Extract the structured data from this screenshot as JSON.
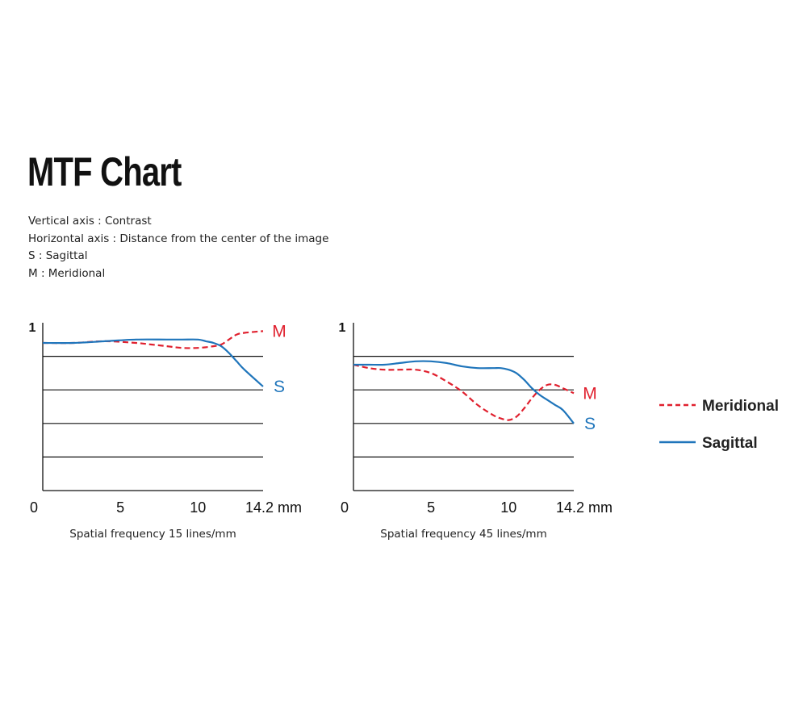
{
  "page": {
    "title": "MTF Chart",
    "description": [
      "Vertical axis : Contrast",
      "Horizontal axis : Distance from the center of the image",
      "S : Sagittal",
      "M : Meridional"
    ]
  },
  "colors": {
    "meridional": "#e0202e",
    "sagittal": "#1f75bb",
    "axis": "#111111"
  },
  "legend": [
    {
      "name": "Meridional",
      "style": "dashed",
      "color": "#e0202e"
    },
    {
      "name": "Sagittal",
      "style": "solid",
      "color": "#1f75bb"
    }
  ],
  "chart_data": [
    {
      "type": "line",
      "xlabel": "Spatial frequency 15 lines/mm",
      "ylabel": "",
      "xlim": [
        0,
        14.2
      ],
      "ylim": [
        0,
        1
      ],
      "x_ticks": [
        "0",
        "5",
        "10",
        "14.2 mm"
      ],
      "x_tick_values": [
        0,
        5,
        10,
        14.2
      ],
      "y_ticks": [
        "1",
        "0"
      ],
      "grid": "horizontal",
      "gridlines_y": [
        0.2,
        0.4,
        0.6,
        0.8
      ],
      "series": [
        {
          "name": "M",
          "style": "dashed",
          "x": [
            0,
            2,
            4,
            6,
            7,
            8,
            9,
            10,
            11,
            11.5,
            12,
            12.5,
            13,
            14.2
          ],
          "y": [
            0.88,
            0.88,
            0.89,
            0.88,
            0.87,
            0.86,
            0.85,
            0.85,
            0.86,
            0.87,
            0.9,
            0.93,
            0.94,
            0.95
          ]
        },
        {
          "name": "S",
          "style": "solid",
          "x": [
            0,
            2,
            4,
            6,
            8,
            9,
            10,
            10.5,
            11,
            11.5,
            12,
            12.5,
            13,
            14.2
          ],
          "y": [
            0.88,
            0.88,
            0.89,
            0.9,
            0.9,
            0.9,
            0.9,
            0.89,
            0.88,
            0.86,
            0.82,
            0.77,
            0.72,
            0.62
          ]
        }
      ]
    },
    {
      "type": "line",
      "xlabel": "Spatial frequency 45 lines/mm",
      "ylabel": "",
      "xlim": [
        0,
        14.2
      ],
      "ylim": [
        0,
        1
      ],
      "x_ticks": [
        "0",
        "5",
        "10",
        "14.2 mm"
      ],
      "x_tick_values": [
        0,
        5,
        10,
        14.2
      ],
      "y_ticks": [
        "1",
        "0"
      ],
      "grid": "horizontal",
      "gridlines_y": [
        0.2,
        0.4,
        0.6,
        0.8
      ],
      "series": [
        {
          "name": "M",
          "style": "dashed",
          "x": [
            0,
            1,
            2,
            3,
            4,
            5,
            6,
            7,
            8,
            9,
            9.5,
            10,
            10.5,
            11,
            11.5,
            12,
            12.5,
            13,
            13.5,
            14.2
          ],
          "y": [
            0.75,
            0.73,
            0.72,
            0.72,
            0.72,
            0.7,
            0.65,
            0.59,
            0.51,
            0.45,
            0.43,
            0.42,
            0.44,
            0.49,
            0.55,
            0.6,
            0.63,
            0.63,
            0.61,
            0.58
          ]
        },
        {
          "name": "S",
          "style": "solid",
          "x": [
            0,
            1,
            2,
            3,
            4,
            5,
            6,
            7,
            8,
            9,
            9.5,
            10,
            10.5,
            11,
            11.5,
            12,
            12.5,
            13,
            13.5,
            14.2
          ],
          "y": [
            0.75,
            0.75,
            0.75,
            0.76,
            0.77,
            0.77,
            0.76,
            0.74,
            0.73,
            0.73,
            0.73,
            0.72,
            0.7,
            0.66,
            0.61,
            0.57,
            0.54,
            0.51,
            0.48,
            0.4
          ]
        }
      ]
    }
  ]
}
